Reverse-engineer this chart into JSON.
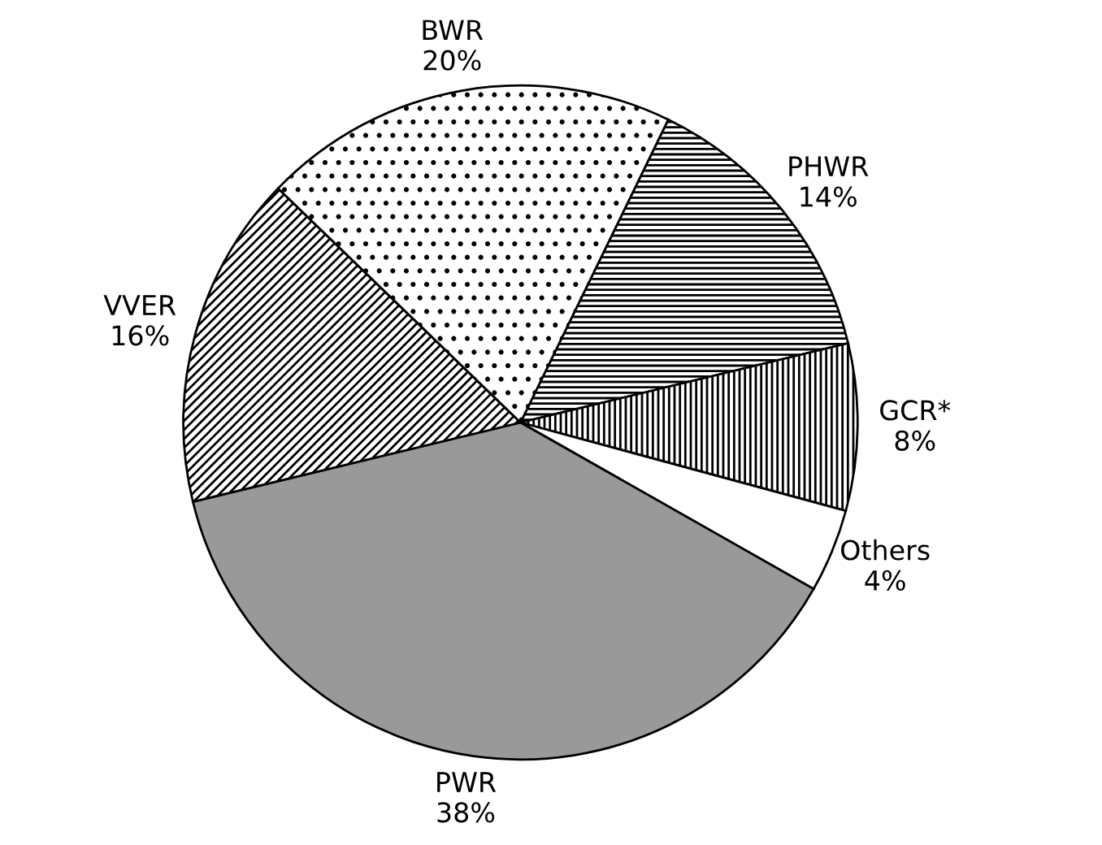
{
  "chart_data": {
    "type": "pie",
    "categories": [
      "PHWR",
      "GCR*",
      "Others",
      "PWR",
      "VVER",
      "BWR"
    ],
    "values": [
      14,
      8,
      4,
      38,
      16,
      20
    ],
    "value_labels": [
      "14%",
      "8%",
      "4%",
      "38%",
      "16%",
      "20%"
    ],
    "colors": [
      "#000000",
      "#000000",
      "#ffffff",
      "#999999",
      "#000000",
      "#000000"
    ],
    "legend": false
  }
}
